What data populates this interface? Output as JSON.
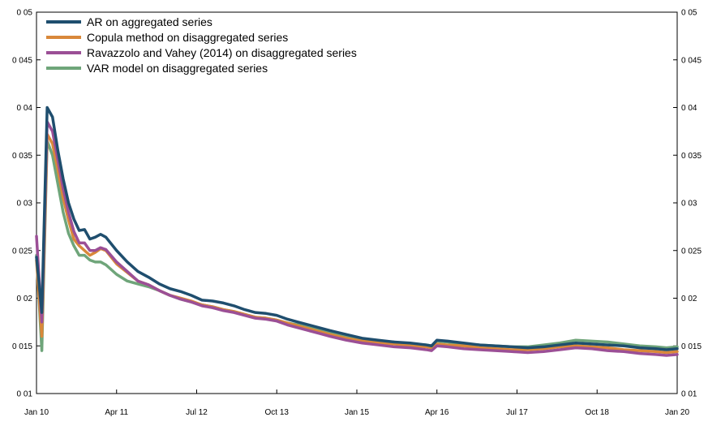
{
  "chart_data": {
    "type": "line",
    "x_tick_labels": [
      "Jan 10",
      "Apr 11",
      "Jul 12",
      "Oct 13",
      "Jan 15",
      "Apr 16",
      "Jul 17",
      "Oct 18",
      "Jan 20"
    ],
    "x_tick_positions": [
      0,
      15,
      30,
      45,
      60,
      75,
      90,
      105,
      120
    ],
    "x_range": [
      0,
      120
    ],
    "y_ticks": [
      0.01,
      0.015,
      0.02,
      0.025,
      0.03,
      0.035,
      0.04,
      0.045,
      0.05
    ],
    "y_tick_labels": [
      "0 01",
      "0 015",
      "0 02",
      "0 025",
      "0 03",
      "0 035",
      "0 04",
      "0 045",
      "0 05"
    ],
    "ylim": [
      0.01,
      0.05
    ],
    "grid": false,
    "legend_position": "top-left",
    "series": [
      {
        "name": "AR on aggregated series",
        "color": "#1f4e6e",
        "points": [
          [
            0,
            0.0243
          ],
          [
            1,
            0.0185
          ],
          [
            2,
            0.04
          ],
          [
            3,
            0.039
          ],
          [
            4,
            0.0355
          ],
          [
            5,
            0.0325
          ],
          [
            6,
            0.03
          ],
          [
            7,
            0.0283
          ],
          [
            8,
            0.0271
          ],
          [
            9,
            0.0272
          ],
          [
            10,
            0.0262
          ],
          [
            11,
            0.0264
          ],
          [
            12,
            0.0267
          ],
          [
            13,
            0.0264
          ],
          [
            15,
            0.025
          ],
          [
            17,
            0.0238
          ],
          [
            19,
            0.0228
          ],
          [
            21,
            0.0222
          ],
          [
            23,
            0.0215
          ],
          [
            25,
            0.021
          ],
          [
            27,
            0.0207
          ],
          [
            29,
            0.0203
          ],
          [
            31,
            0.0198
          ],
          [
            33,
            0.0197
          ],
          [
            35,
            0.0195
          ],
          [
            37,
            0.0192
          ],
          [
            39,
            0.0188
          ],
          [
            41,
            0.0185
          ],
          [
            43,
            0.0184
          ],
          [
            45,
            0.0182
          ],
          [
            47,
            0.0178
          ],
          [
            49,
            0.0175
          ],
          [
            51,
            0.0172
          ],
          [
            53,
            0.0169
          ],
          [
            55,
            0.0166
          ],
          [
            58,
            0.0162
          ],
          [
            61,
            0.0158
          ],
          [
            64,
            0.0156
          ],
          [
            67,
            0.0154
          ],
          [
            70,
            0.0153
          ],
          [
            73,
            0.0151
          ],
          [
            74,
            0.015
          ],
          [
            75,
            0.0156
          ],
          [
            77,
            0.0155
          ],
          [
            80,
            0.0153
          ],
          [
            83,
            0.0151
          ],
          [
            86,
            0.015
          ],
          [
            89,
            0.0149
          ],
          [
            92,
            0.0148
          ],
          [
            95,
            0.0149
          ],
          [
            98,
            0.0151
          ],
          [
            101,
            0.0153
          ],
          [
            104,
            0.0152
          ],
          [
            107,
            0.0151
          ],
          [
            110,
            0.015
          ],
          [
            113,
            0.0148
          ],
          [
            116,
            0.0147
          ],
          [
            118,
            0.0146
          ],
          [
            120,
            0.0147
          ]
        ]
      },
      {
        "name": "Copula method on disaggregated series",
        "color": "#d9883a",
        "points": [
          [
            0,
            0.024
          ],
          [
            1,
            0.016
          ],
          [
            2,
            0.0372
          ],
          [
            3,
            0.0362
          ],
          [
            4,
            0.0335
          ],
          [
            5,
            0.0305
          ],
          [
            6,
            0.0282
          ],
          [
            7,
            0.0262
          ],
          [
            8,
            0.0255
          ],
          [
            9,
            0.025
          ],
          [
            10,
            0.0245
          ],
          [
            11,
            0.0248
          ],
          [
            12,
            0.0252
          ],
          [
            13,
            0.025
          ],
          [
            15,
            0.0236
          ],
          [
            17,
            0.0227
          ],
          [
            19,
            0.0218
          ],
          [
            21,
            0.0214
          ],
          [
            23,
            0.0208
          ],
          [
            25,
            0.0203
          ],
          [
            27,
            0.02
          ],
          [
            29,
            0.0197
          ],
          [
            31,
            0.0193
          ],
          [
            33,
            0.0191
          ],
          [
            35,
            0.0188
          ],
          [
            37,
            0.0186
          ],
          [
            39,
            0.0183
          ],
          [
            41,
            0.018
          ],
          [
            43,
            0.0179
          ],
          [
            45,
            0.0177
          ],
          [
            47,
            0.0174
          ],
          [
            49,
            0.0171
          ],
          [
            51,
            0.0168
          ],
          [
            53,
            0.0165
          ],
          [
            55,
            0.0162
          ],
          [
            58,
            0.0158
          ],
          [
            61,
            0.0155
          ],
          [
            64,
            0.0153
          ],
          [
            67,
            0.0152
          ],
          [
            70,
            0.015
          ],
          [
            73,
            0.0149
          ],
          [
            74,
            0.0148
          ],
          [
            75,
            0.0152
          ],
          [
            77,
            0.0151
          ],
          [
            80,
            0.015
          ],
          [
            83,
            0.0148
          ],
          [
            86,
            0.0147
          ],
          [
            89,
            0.0146
          ],
          [
            92,
            0.0146
          ],
          [
            95,
            0.0147
          ],
          [
            98,
            0.0149
          ],
          [
            101,
            0.015
          ],
          [
            104,
            0.0149
          ],
          [
            107,
            0.0148
          ],
          [
            110,
            0.0146
          ],
          [
            113,
            0.0145
          ],
          [
            116,
            0.0144
          ],
          [
            118,
            0.0143
          ],
          [
            120,
            0.0144
          ]
        ]
      },
      {
        "name": "Ravazzolo and Vahey (2014) on disaggregated series",
        "color": "#9b4f96",
        "points": [
          [
            0,
            0.0265
          ],
          [
            1,
            0.0175
          ],
          [
            2,
            0.0385
          ],
          [
            3,
            0.0375
          ],
          [
            4,
            0.0345
          ],
          [
            5,
            0.0315
          ],
          [
            6,
            0.029
          ],
          [
            7,
            0.027
          ],
          [
            8,
            0.0258
          ],
          [
            9,
            0.0258
          ],
          [
            10,
            0.025
          ],
          [
            11,
            0.025
          ],
          [
            12,
            0.0253
          ],
          [
            13,
            0.0251
          ],
          [
            15,
            0.0238
          ],
          [
            17,
            0.0228
          ],
          [
            19,
            0.0218
          ],
          [
            21,
            0.0214
          ],
          [
            23,
            0.0208
          ],
          [
            25,
            0.0203
          ],
          [
            27,
            0.0199
          ],
          [
            29,
            0.0196
          ],
          [
            31,
            0.0192
          ],
          [
            33,
            0.019
          ],
          [
            35,
            0.0187
          ],
          [
            37,
            0.0185
          ],
          [
            39,
            0.0182
          ],
          [
            41,
            0.0179
          ],
          [
            43,
            0.0178
          ],
          [
            45,
            0.0176
          ],
          [
            47,
            0.0172
          ],
          [
            49,
            0.0169
          ],
          [
            51,
            0.0166
          ],
          [
            53,
            0.0163
          ],
          [
            55,
            0.016
          ],
          [
            58,
            0.0156
          ],
          [
            61,
            0.0153
          ],
          [
            64,
            0.0151
          ],
          [
            67,
            0.0149
          ],
          [
            70,
            0.0148
          ],
          [
            73,
            0.0146
          ],
          [
            74,
            0.0145
          ],
          [
            75,
            0.015
          ],
          [
            77,
            0.0149
          ],
          [
            80,
            0.0147
          ],
          [
            83,
            0.0146
          ],
          [
            86,
            0.0145
          ],
          [
            89,
            0.0144
          ],
          [
            92,
            0.0143
          ],
          [
            95,
            0.0144
          ],
          [
            98,
            0.0146
          ],
          [
            101,
            0.0148
          ],
          [
            104,
            0.0147
          ],
          [
            107,
            0.0145
          ],
          [
            110,
            0.0144
          ],
          [
            113,
            0.0142
          ],
          [
            116,
            0.0141
          ],
          [
            118,
            0.014
          ],
          [
            120,
            0.0141
          ]
        ]
      },
      {
        "name": "VAR model on disaggregated series",
        "color": "#6fa57a",
        "points": [
          [
            0,
            0.0245
          ],
          [
            1,
            0.0145
          ],
          [
            2,
            0.0365
          ],
          [
            3,
            0.035
          ],
          [
            4,
            0.032
          ],
          [
            5,
            0.029
          ],
          [
            6,
            0.0268
          ],
          [
            7,
            0.0255
          ],
          [
            8,
            0.0245
          ],
          [
            9,
            0.0245
          ],
          [
            10,
            0.024
          ],
          [
            11,
            0.0238
          ],
          [
            12,
            0.0238
          ],
          [
            13,
            0.0235
          ],
          [
            15,
            0.0225
          ],
          [
            17,
            0.0218
          ],
          [
            19,
            0.0215
          ],
          [
            21,
            0.0212
          ],
          [
            23,
            0.0208
          ],
          [
            25,
            0.0203
          ],
          [
            27,
            0.0199
          ],
          [
            29,
            0.0196
          ],
          [
            31,
            0.0193
          ],
          [
            33,
            0.0191
          ],
          [
            35,
            0.0188
          ],
          [
            37,
            0.0186
          ],
          [
            39,
            0.0183
          ],
          [
            41,
            0.018
          ],
          [
            43,
            0.0179
          ],
          [
            45,
            0.0177
          ],
          [
            47,
            0.0174
          ],
          [
            49,
            0.0172
          ],
          [
            51,
            0.0169
          ],
          [
            53,
            0.0167
          ],
          [
            55,
            0.0164
          ],
          [
            58,
            0.016
          ],
          [
            61,
            0.0157
          ],
          [
            64,
            0.0155
          ],
          [
            67,
            0.0154
          ],
          [
            70,
            0.0152
          ],
          [
            73,
            0.0151
          ],
          [
            74,
            0.015
          ],
          [
            75,
            0.0155
          ],
          [
            77,
            0.0154
          ],
          [
            80,
            0.0152
          ],
          [
            83,
            0.0151
          ],
          [
            86,
            0.015
          ],
          [
            89,
            0.0149
          ],
          [
            92,
            0.0149
          ],
          [
            95,
            0.0151
          ],
          [
            98,
            0.0153
          ],
          [
            101,
            0.0156
          ],
          [
            104,
            0.0155
          ],
          [
            107,
            0.0154
          ],
          [
            110,
            0.0152
          ],
          [
            113,
            0.015
          ],
          [
            116,
            0.0149
          ],
          [
            118,
            0.0148
          ],
          [
            120,
            0.0149
          ]
        ]
      }
    ]
  }
}
